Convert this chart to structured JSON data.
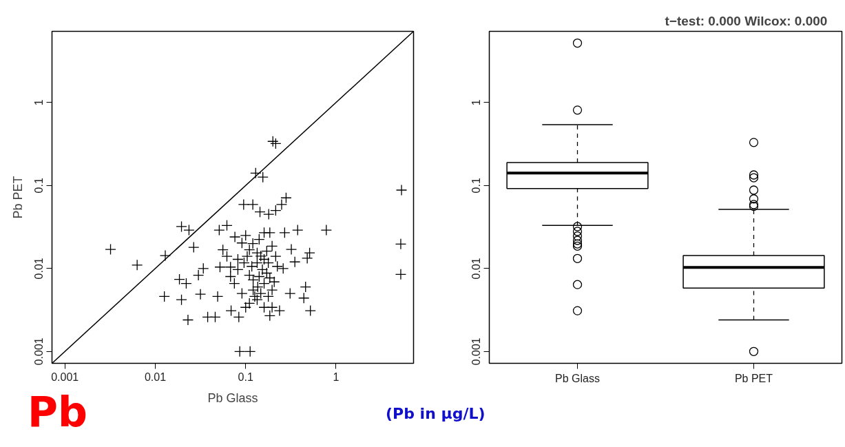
{
  "chart_data": [
    {
      "type": "scatter",
      "xlabel": "Pb Glass",
      "ylabel": "Pb PET",
      "log": "xy",
      "grid": false,
      "xlim": [
        0.00072,
        7.2
      ],
      "ylim": [
        0.00072,
        7.2
      ],
      "xticks": [
        0.001,
        0.01,
        0.1,
        1
      ],
      "yticks": [
        0.001,
        0.01,
        0.1,
        1
      ],
      "annotations": [
        "Pb"
      ],
      "series": [
        {
          "color": "#000000",
          "marker": "cross",
          "x": [
            0.0032,
            0.0063,
            0.0129,
            0.0195,
            0.0236,
            0.0266,
            0.0185,
            0.022,
            0.0126,
            0.0195,
            0.023,
            0.0316,
            0.03,
            0.038,
            0.046,
            0.049,
            0.034,
            0.051,
            0.062,
            0.052,
            0.068,
            0.082,
            0.069,
            0.084,
            0.086,
            0.112,
            0.129,
            0.155,
            0.215,
            0.2,
            5.3,
            5.2,
            5.2,
            0.78,
            0.28,
            0.25,
            0.095,
            0.12,
            0.144,
            0.18,
            0.215,
            0.376,
            0.48,
            0.52,
            0.44,
            0.31,
            0.46,
            0.26,
            0.35,
            0.51,
            0.32,
            0.185,
            0.27,
            0.1,
            0.076,
            0.12,
            0.091,
            0.11,
            0.134,
            0.147,
            0.16,
            0.178,
            0.134,
            0.117,
            0.153,
            0.171,
            0.141,
            0.121,
            0.185,
            0.16,
            0.136,
            0.121,
            0.147,
            0.178,
            0.134,
            0.11,
            0.16,
            0.196,
            0.207,
            0.11,
            0.096,
            0.104,
            0.171,
            0.196,
            0.215,
            0.224,
            0.082,
            0.075,
            0.091,
            0.068,
            0.062,
            0.056,
            0.141,
            0.16,
            0.126,
            0.1,
            0.196,
            0.237,
            0.185
          ],
          "values": [
            0.017,
            0.011,
            0.0143,
            0.032,
            0.029,
            0.018,
            0.0074,
            0.0066,
            0.0046,
            0.0042,
            0.0024,
            0.0049,
            0.0083,
            0.0026,
            0.0026,
            0.0046,
            0.01,
            0.029,
            0.033,
            0.0104,
            0.0104,
            0.0097,
            0.0031,
            0.0026,
            0.001,
            0.001,
            0.141,
            0.126,
            0.32,
            0.34,
            0.088,
            0.0197,
            0.0085,
            0.029,
            0.071,
            0.059,
            0.059,
            0.059,
            0.048,
            0.045,
            0.05,
            0.029,
            0.0133,
            0.0031,
            0.0044,
            0.005,
            0.006,
            0.01,
            0.012,
            0.0154,
            0.017,
            0.027,
            0.027,
            0.025,
            0.024,
            0.02,
            0.0203,
            0.0168,
            0.0154,
            0.0141,
            0.0129,
            0.0117,
            0.0117,
            0.0106,
            0.0097,
            0.0088,
            0.008,
            0.0073,
            0.0077,
            0.0066,
            0.006,
            0.0055,
            0.005,
            0.0046,
            0.0042,
            0.0038,
            0.0034,
            0.0055,
            0.0069,
            0.0083,
            0.0117,
            0.014,
            0.0162,
            0.0186,
            0.014,
            0.0106,
            0.0129,
            0.0066,
            0.005,
            0.008,
            0.014,
            0.0168,
            0.0224,
            0.027,
            0.0046,
            0.0034,
            0.0034,
            0.0031,
            0.0027
          ]
        },
        {
          "type": "line",
          "color": "#000000",
          "x": [
            0.00072,
            7.2
          ],
          "values": [
            0.00072,
            7.2
          ]
        }
      ]
    },
    {
      "type": "box",
      "title": "t−test: 0.000     Wilcox: 0.000",
      "log": "y",
      "grid": false,
      "categories": [
        "Pb Glass",
        "Pb PET"
      ],
      "ylim": [
        0.00072,
        7.2
      ],
      "yticks": [
        0.001,
        0.01,
        0.1,
        1
      ],
      "annotations": [
        "(Pb in μg/L)"
      ],
      "boxes": [
        {
          "low": 0.033,
          "q1": 0.092,
          "median": 0.141,
          "q3": 0.189,
          "high": 0.54,
          "outliers": [
            5.2,
            0.81,
            0.032,
            0.028,
            0.0246,
            0.0218,
            0.0198,
            0.0186,
            0.0132,
            0.0064,
            0.0031
          ]
        },
        {
          "low": 0.0024,
          "q1": 0.0058,
          "median": 0.0103,
          "q3": 0.0143,
          "high": 0.0516,
          "outliers": [
            0.33,
            0.134,
            0.124,
            0.088,
            0.069,
            0.059,
            0.056,
            0.001
          ]
        }
      ]
    }
  ]
}
